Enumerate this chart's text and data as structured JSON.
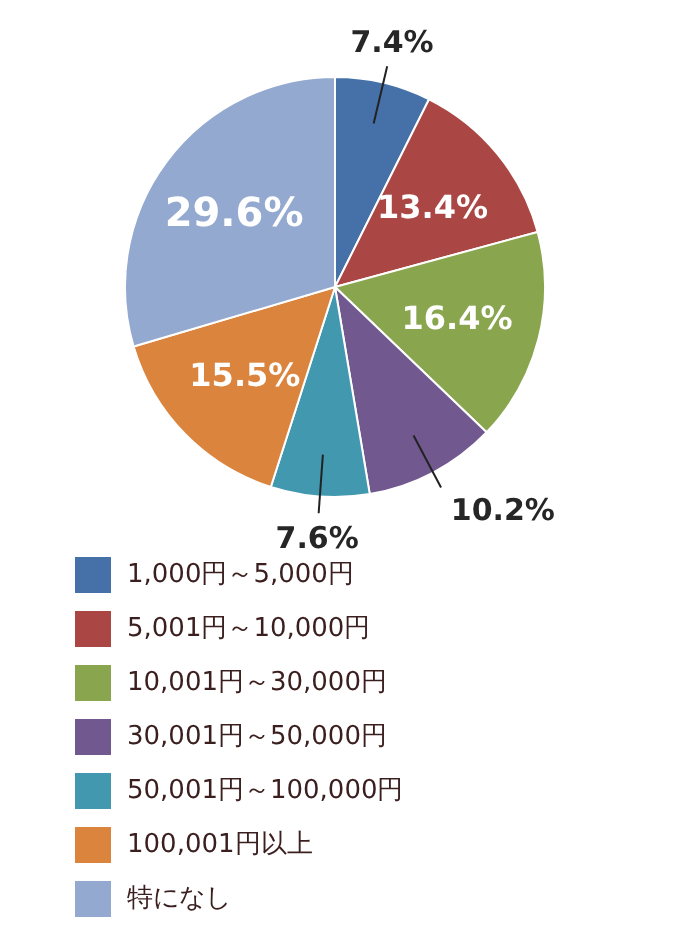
{
  "chart_data": {
    "type": "pie",
    "categories": [
      "1,000円～5,000円",
      "5,001円～10,000円",
      "10,001円～30,000円",
      "30,001円～50,000円",
      "50,001円～100,000円",
      "100,001円以上",
      "特になし"
    ],
    "values": [
      7.4,
      13.4,
      16.4,
      10.2,
      7.6,
      15.5,
      29.6
    ],
    "colors": [
      "#4571a8",
      "#aa4644",
      "#89a54e",
      "#71588f",
      "#4198af",
      "#db843d",
      "#93a9cf"
    ],
    "value_labels": [
      "7.4%",
      "13.4%",
      "16.4%",
      "10.2%",
      "7.6%",
      "15.5%",
      "29.6%"
    ],
    "legend": "bottom"
  }
}
